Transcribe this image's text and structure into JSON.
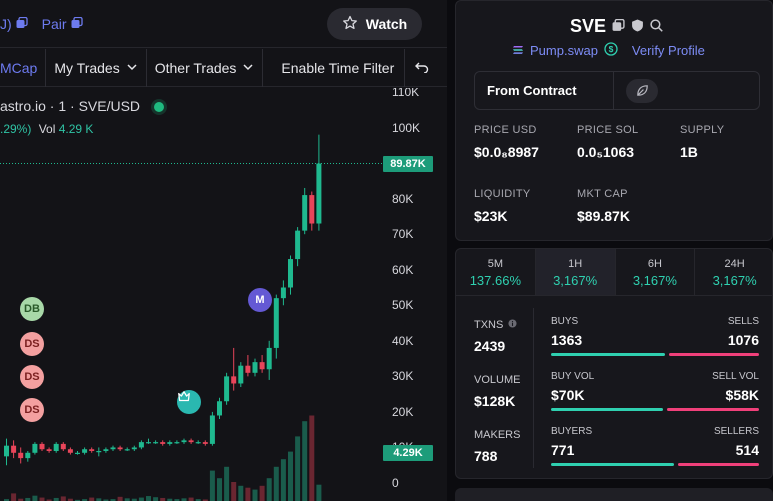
{
  "topbar": {
    "left_label": "J)",
    "pair_label": "Pair",
    "watch_label": "Watch"
  },
  "toolbar": {
    "mcap": "MCap",
    "my_trades": "My Trades",
    "other_trades": "Other Trades",
    "time_filter": "Enable Time Filter"
  },
  "chart": {
    "legend": "astro.io · 1 · SVE/USD",
    "change": ".29%)",
    "vol_label": "Vol",
    "vol_value": "4.29 K",
    "price_badge": "89.87K",
    "vol_badge": "4.29K",
    "y_ticks": [
      "110K",
      "100K",
      "90K",
      "80K",
      "70K",
      "60K",
      "50K",
      "40K",
      "30K",
      "20K",
      "10K",
      "0"
    ],
    "markers": [
      {
        "label": "DB",
        "kind": "db"
      },
      {
        "label": "DS",
        "kind": "ds"
      },
      {
        "label": "DS",
        "kind": "ds"
      },
      {
        "label": "DS",
        "kind": "ds"
      },
      {
        "label": "M",
        "kind": "m"
      }
    ]
  },
  "chart_data": {
    "type": "candlestick",
    "title": "",
    "ylabel": "",
    "ylim": [
      0,
      110000
    ],
    "last_price": 89870,
    "last_volume": 4290,
    "candles": [
      {
        "o": 7500,
        "h": 12500,
        "l": 5000,
        "c": 10500
      },
      {
        "o": 10500,
        "h": 12000,
        "l": 7000,
        "c": 8500
      },
      {
        "o": 8500,
        "h": 10000,
        "l": 5500,
        "c": 7000
      },
      {
        "o": 7000,
        "h": 9000,
        "l": 6000,
        "c": 8500
      },
      {
        "o": 8500,
        "h": 11500,
        "l": 8000,
        "c": 11000
      },
      {
        "o": 11000,
        "h": 11500,
        "l": 9000,
        "c": 9500
      },
      {
        "o": 9500,
        "h": 10000,
        "l": 8500,
        "c": 9000
      },
      {
        "o": 9000,
        "h": 11500,
        "l": 8500,
        "c": 11000
      },
      {
        "o": 11000,
        "h": 11500,
        "l": 9000,
        "c": 9500
      },
      {
        "o": 9500,
        "h": 10000,
        "l": 8000,
        "c": 8500
      },
      {
        "o": 8500,
        "h": 9000,
        "l": 8000,
        "c": 8500
      },
      {
        "o": 8500,
        "h": 10000,
        "l": 8000,
        "c": 9500
      },
      {
        "o": 9500,
        "h": 10000,
        "l": 8500,
        "c": 9000
      },
      {
        "o": 9000,
        "h": 10000,
        "l": 7500,
        "c": 9000
      },
      {
        "o": 9000,
        "h": 10000,
        "l": 8500,
        "c": 9500
      },
      {
        "o": 9500,
        "h": 10500,
        "l": 9000,
        "c": 10000
      },
      {
        "o": 10000,
        "h": 10500,
        "l": 9000,
        "c": 9500
      },
      {
        "o": 9500,
        "h": 10000,
        "l": 9000,
        "c": 9500
      },
      {
        "o": 9500,
        "h": 10500,
        "l": 9000,
        "c": 10000
      },
      {
        "o": 10000,
        "h": 12000,
        "l": 9500,
        "c": 11500
      },
      {
        "o": 11500,
        "h": 12500,
        "l": 11000,
        "c": 11500
      },
      {
        "o": 11500,
        "h": 12000,
        "l": 11000,
        "c": 11500
      },
      {
        "o": 11500,
        "h": 12000,
        "l": 10500,
        "c": 11000
      },
      {
        "o": 11000,
        "h": 12000,
        "l": 10500,
        "c": 11500
      },
      {
        "o": 11500,
        "h": 12000,
        "l": 11000,
        "c": 11500
      },
      {
        "o": 11500,
        "h": 12500,
        "l": 11000,
        "c": 12000
      },
      {
        "o": 12000,
        "h": 12500,
        "l": 11000,
        "c": 11500
      },
      {
        "o": 11500,
        "h": 12000,
        "l": 11000,
        "c": 11500
      },
      {
        "o": 11500,
        "h": 12000,
        "l": 10500,
        "c": 11000
      },
      {
        "o": 11000,
        "h": 20000,
        "l": 10500,
        "c": 19000
      },
      {
        "o": 19000,
        "h": 24000,
        "l": 18000,
        "c": 23000
      },
      {
        "o": 23000,
        "h": 31000,
        "l": 22000,
        "c": 30000
      },
      {
        "o": 30000,
        "h": 38000,
        "l": 26000,
        "c": 28000
      },
      {
        "o": 28000,
        "h": 34000,
        "l": 27000,
        "c": 33000
      },
      {
        "o": 33000,
        "h": 36000,
        "l": 30000,
        "c": 31000
      },
      {
        "o": 31000,
        "h": 35000,
        "l": 30000,
        "c": 34000
      },
      {
        "o": 34000,
        "h": 36000,
        "l": 31000,
        "c": 32000
      },
      {
        "o": 32000,
        "h": 40000,
        "l": 29000,
        "c": 38000
      },
      {
        "o": 38000,
        "h": 53000,
        "l": 35000,
        "c": 52000
      },
      {
        "o": 52000,
        "h": 57000,
        "l": 50000,
        "c": 55000
      },
      {
        "o": 55000,
        "h": 64000,
        "l": 53000,
        "c": 63000
      },
      {
        "o": 63000,
        "h": 72000,
        "l": 61000,
        "c": 71000
      },
      {
        "o": 71000,
        "h": 83000,
        "l": 70000,
        "c": 81000
      },
      {
        "o": 81000,
        "h": 82000,
        "l": 71000,
        "c": 73000
      },
      {
        "o": 73000,
        "h": 98000,
        "l": 71000,
        "c": 89870
      }
    ],
    "volumes": [
      500,
      2000,
      600,
      800,
      1400,
      900,
      400,
      800,
      1200,
      600,
      300,
      500,
      900,
      700,
      400,
      500,
      1100,
      700,
      600,
      900,
      1300,
      1000,
      800,
      600,
      500,
      700,
      900,
      500,
      400,
      8000,
      6000,
      9000,
      5000,
      4000,
      3500,
      3000,
      4000,
      6000,
      9000,
      11000,
      13000,
      17000,
      21000,
      22500,
      4290
    ]
  },
  "token": {
    "symbol": "SVE",
    "dex": "Pump.swap",
    "verify": "Verify Profile",
    "from_contract": "From Contract",
    "stats": [
      {
        "label": "PRICE USD",
        "value": "$0.0₈8987"
      },
      {
        "label": "PRICE SOL",
        "value": "0.0₅1063"
      },
      {
        "label": "SUPPLY",
        "value": "1B"
      },
      {
        "label": "LIQUIDITY",
        "value": "$23K"
      },
      {
        "label": "MKT CAP",
        "value": "$89.87K"
      }
    ]
  },
  "timeframes": [
    {
      "name": "5M",
      "pct": "137.66%",
      "active": false
    },
    {
      "name": "1H",
      "pct": "3,167%",
      "active": true
    },
    {
      "name": "6H",
      "pct": "3,167%",
      "active": false
    },
    {
      "name": "24H",
      "pct": "3,167%",
      "active": false
    }
  ],
  "txns": {
    "txns_label": "TXNS",
    "txns_value": "2439",
    "volume_label": "VOLUME",
    "volume_value": "$128K",
    "makers_label": "MAKERS",
    "makers_value": "788",
    "buys_label": "BUYS",
    "buys_value": "1363",
    "sells_label": "SELLS",
    "sells_value": "1076",
    "buy_vol_label": "BUY VOL",
    "buy_vol_value": "$70K",
    "sell_vol_label": "SELL VOL",
    "sell_vol_value": "$58K",
    "buyers_label": "BUYERS",
    "buyers_value": "771",
    "sellers_label": "SELLERS",
    "sellers_value": "514",
    "buys_fraction": 0.559,
    "buy_vol_fraction": 0.547,
    "buyers_fraction": 0.6
  },
  "colors": {
    "up": "#1fb98f",
    "down": "#e8455a",
    "accent": "#6d7bf0",
    "positive_pct": "#2fd0b0"
  }
}
